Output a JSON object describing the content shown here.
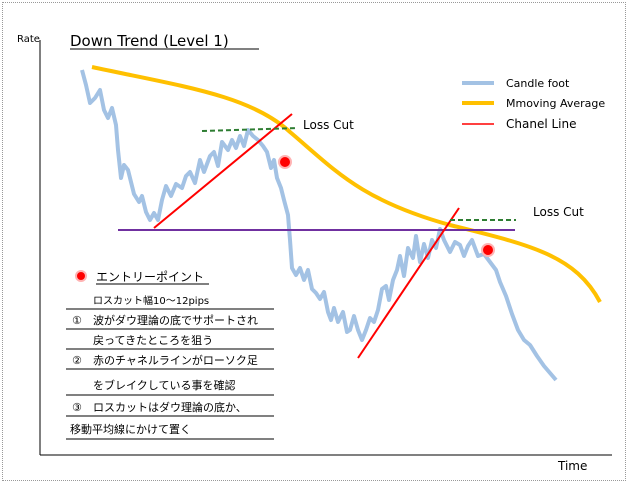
{
  "title": "Down Trend (Level 1)",
  "axis": {
    "y_label": "Rate",
    "x_label": "Time"
  },
  "legend": [
    {
      "label": "Candle foot",
      "color": "#a3c2e4",
      "style": "thick-line"
    },
    {
      "label": "Mmoving Average",
      "color": "#ffc000",
      "style": "thick-line"
    },
    {
      "label": "Chanel Line",
      "color": "#ff0000",
      "style": "thin-line"
    }
  ],
  "annotations": {
    "loss_cut_1": "Loss Cut",
    "loss_cut_2": "Loss Cut"
  },
  "notes": {
    "entry_point": "エントリーポイント",
    "stop_width": "ロスカット幅10～12pips",
    "item1_num": "①",
    "item1_line1": "波がダウ理論の底でサポートされ",
    "item1_line2": "戻ってきたところを狙う",
    "item2_num": "②",
    "item2_line1": "赤のチャネルラインがローソク足",
    "item2_line2": "をブレイクしている事を確認",
    "item3_num": "③",
    "item3_line1": "ロスカットはダウ理論の底か、",
    "item3_line2": "移動平均線にかけて置く"
  },
  "colors": {
    "candle": "#a3c2e4",
    "moving_average": "#ffc000",
    "channel": "#ff0000",
    "support": "#7030a0",
    "loss_cut_line": "#2e7d32",
    "entry_dot": "#ff0000"
  }
}
